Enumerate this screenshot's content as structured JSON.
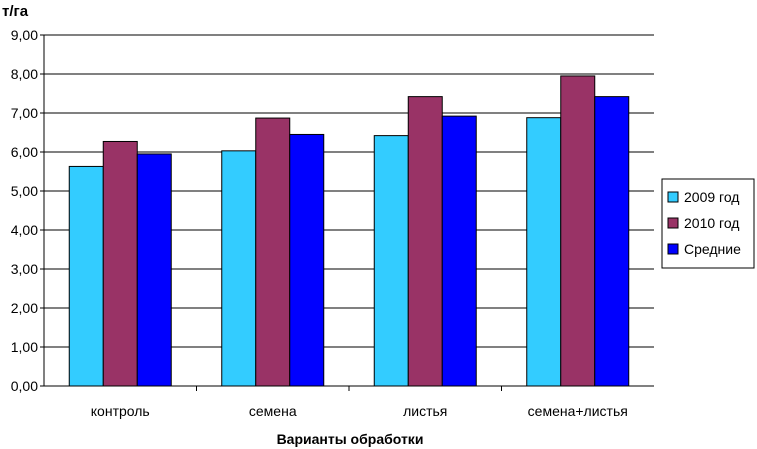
{
  "chart_data": {
    "type": "bar",
    "ylabel": "т/га",
    "xlabel": "Варианты обработки",
    "categories": [
      "контроль",
      "семена",
      "листья",
      "семена+листья"
    ],
    "series": [
      {
        "name": "2009 год",
        "color": "#33ccff",
        "values": [
          5.63,
          6.03,
          6.42,
          6.88
        ]
      },
      {
        "name": "2010 год",
        "color": "#993366",
        "values": [
          6.27,
          6.87,
          7.42,
          7.95
        ]
      },
      {
        "name": "Средние",
        "color": "#0000ff",
        "values": [
          5.95,
          6.45,
          6.92,
          7.42
        ]
      }
    ],
    "ylim": [
      0,
      9
    ],
    "yticks": [
      "0,00",
      "1,00",
      "2,00",
      "3,00",
      "4,00",
      "5,00",
      "6,00",
      "7,00",
      "8,00",
      "9,00"
    ],
    "grid": true,
    "legend_position": "right"
  }
}
